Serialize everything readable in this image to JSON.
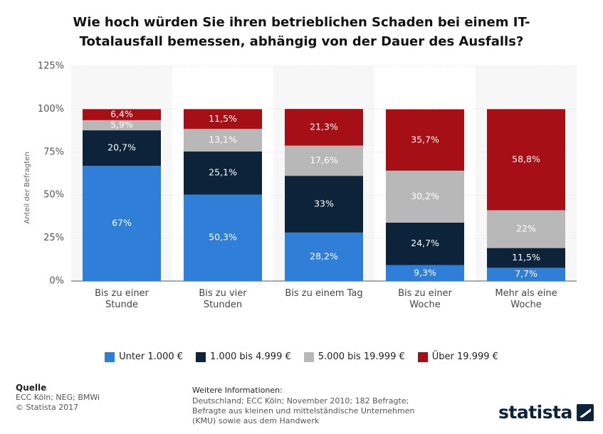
{
  "chart_data": {
    "type": "stacked_bar",
    "title": "Wie hoch würden Sie ihren betrieblichen Schaden bei einem IT-Totalausfall bemessen, abhängig von der Dauer des Ausfalls?",
    "y_label": "Anteil der Befragten",
    "categories": [
      "Bis zu einer Stunde",
      "Bis zu vier Stunden",
      "Bis zu einem Tag",
      "Bis zu einer Woche",
      "Mehr als eine Woche"
    ],
    "series": [
      {
        "name": "Unter 1.000 €",
        "color": "#2f7ed8",
        "values": [
          67,
          50.3,
          28.2,
          9.3,
          7.7
        ],
        "value_labels": [
          "67%",
          "50,3%",
          "28,2%",
          "9,3%",
          "7,7%"
        ]
      },
      {
        "name": "1.000 bis 4.999 €",
        "color": "#0d233a",
        "values": [
          20.7,
          25.1,
          33,
          24.7,
          11.5
        ],
        "value_labels": [
          "20,7%",
          "25,1%",
          "33%",
          "24,7%",
          "11,5%"
        ]
      },
      {
        "name": "5.000 bis 19.999 €",
        "color": "#b8b8b8",
        "values": [
          5.9,
          13.1,
          17.6,
          30.2,
          22
        ],
        "value_labels": [
          "5,9%",
          "13,1%",
          "17,6%",
          "30,2%",
          "22%"
        ]
      },
      {
        "name": "Über 19.999 €",
        "color": "#a50f15",
        "values": [
          6.4,
          11.5,
          21.3,
          35.7,
          58.8
        ],
        "value_labels": [
          "6,4%",
          "11,5%",
          "21,3%",
          "35,7%",
          "58,8%"
        ]
      }
    ],
    "ylim": [
      0,
      125
    ],
    "yticks": [
      {
        "value": 0,
        "label": "0%"
      },
      {
        "value": 25,
        "label": "25%"
      },
      {
        "value": 50,
        "label": "50%"
      },
      {
        "value": 75,
        "label": "75%"
      },
      {
        "value": 100,
        "label": "100%"
      },
      {
        "value": 125,
        "label": "125%"
      }
    ],
    "grid": true
  },
  "footer": {
    "source_heading": "Quelle",
    "source": "ECC Köln; NEG; BMWi",
    "copyright": "© Statista 2017",
    "info_heading": "Weitere Informationen:",
    "info": "Deutschland; ECC Köln; November 2010; 182 Befragte; Befragte aus kleinen und mittelständische Unternehmen (KMU) sowie aus dem Handwerk",
    "logo": "statista"
  }
}
